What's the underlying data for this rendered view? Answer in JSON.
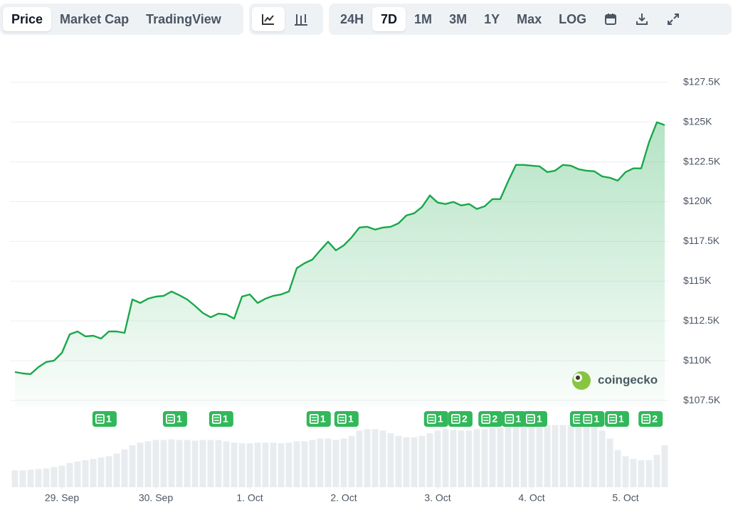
{
  "toolbar": {
    "views": [
      "Price",
      "Market Cap",
      "TradingView"
    ],
    "active_view": 0,
    "ranges": [
      "24H",
      "7D",
      "1M",
      "3M",
      "1Y",
      "Max",
      "LOG"
    ],
    "active_range": 1
  },
  "watermark": "coingecko",
  "chart_data": {
    "type": "line",
    "color": "#18a84a",
    "grid": true,
    "x": [
      -12,
      -10,
      -8,
      -6,
      -4,
      -2,
      0,
      2,
      4,
      6,
      8,
      10,
      12,
      14,
      16,
      18,
      20,
      22,
      24,
      26,
      28,
      30,
      32,
      34,
      36,
      38,
      40,
      42,
      44,
      46,
      48,
      50,
      52,
      54,
      56,
      58,
      60,
      62,
      64,
      66,
      68,
      70,
      72,
      74,
      76,
      78,
      80,
      82,
      84,
      86,
      88,
      90,
      92,
      94,
      96,
      98,
      100,
      102,
      104,
      106,
      108,
      110,
      112,
      114,
      116,
      118,
      120,
      122,
      124,
      126,
      128,
      130,
      132,
      134,
      136,
      138,
      140,
      142,
      144,
      146,
      148,
      150,
      152,
      154
    ],
    "series": [
      {
        "values": [
          109290,
          109200,
          109160,
          109600,
          109920,
          110010,
          110500,
          111660,
          111840,
          111530,
          111570,
          111390,
          111840,
          111840,
          111750,
          113850,
          113630,
          113900,
          114030,
          114080,
          114350,
          114120,
          113850,
          113450,
          113000,
          112730,
          112960,
          112910,
          112650,
          114030,
          114170,
          113630,
          113900,
          114080,
          114170,
          114350,
          115820,
          116130,
          116360,
          116940,
          117480,
          116940,
          117250,
          117750,
          118370,
          118420,
          118240,
          118370,
          118420,
          118640,
          119130,
          119270,
          119670,
          120390,
          119940,
          119850,
          119980,
          119760,
          119850,
          119540,
          119710,
          120160,
          120160,
          121280,
          122310,
          122310,
          122260,
          122220,
          121860,
          121950,
          122310,
          122260,
          122040,
          121950,
          121910,
          121590,
          121500,
          121320,
          121860,
          122090,
          122090,
          123740,
          124990,
          124810
        ]
      },
      {
        "axis": "y2",
        "color": "#e9ecef",
        "values": [
          25,
          25,
          26,
          27,
          28,
          30,
          32,
          36,
          38,
          40,
          42,
          44,
          46,
          50,
          56,
          62,
          66,
          68,
          70,
          70,
          71,
          70,
          70,
          69,
          70,
          70,
          70,
          68,
          66,
          65,
          65,
          66,
          66,
          66,
          65,
          66,
          68,
          68,
          70,
          72,
          72,
          70,
          72,
          76,
          84,
          86,
          86,
          84,
          80,
          76,
          74,
          74,
          76,
          80,
          84,
          86,
          85,
          84,
          84,
          86,
          86,
          88,
          88,
          90,
          92,
          92,
          90,
          90,
          92,
          92,
          92,
          92,
          92,
          92,
          90,
          84,
          72,
          55,
          46,
          42,
          40,
          40,
          48,
          62
        ]
      }
    ],
    "xlim": [
      -13.27,
      155.09
    ],
    "xticks": [
      {
        "value": 0,
        "label": "29. Sep"
      },
      {
        "value": 24,
        "label": "30. Sep"
      },
      {
        "value": 48,
        "label": "1. Oct"
      },
      {
        "value": 72,
        "label": "2. Oct"
      },
      {
        "value": 96,
        "label": "3. Oct"
      },
      {
        "value": 120,
        "label": "4. Oct"
      },
      {
        "value": 144,
        "label": "5. Oct"
      }
    ],
    "ylim": [
      107100,
      129500
    ],
    "yticks": [
      {
        "value": 107500,
        "label": "$107.5K"
      },
      {
        "value": 110000,
        "label": "$110K"
      },
      {
        "value": 112500,
        "label": "$112.5K"
      },
      {
        "value": 115000,
        "label": "$115K"
      },
      {
        "value": 117500,
        "label": "$117.5K"
      },
      {
        "value": 120000,
        "label": "$120K"
      },
      {
        "value": 122500,
        "label": "$122.5K"
      },
      {
        "value": 125000,
        "label": "$125K"
      },
      {
        "value": 127500,
        "label": "$127.5K"
      }
    ],
    "y2lim": [
      0,
      100
    ],
    "news": [
      {
        "x": 10.9,
        "count": 1
      },
      {
        "x": 28.9,
        "count": 1
      },
      {
        "x": 40.7,
        "count": 1
      },
      {
        "x": 65.6,
        "count": 1
      },
      {
        "x": 72.7,
        "count": 1
      },
      {
        "x": 95.6,
        "count": 1
      },
      {
        "x": 101.8,
        "count": 2
      },
      {
        "x": 109.5,
        "count": 2
      },
      {
        "x": 115.5,
        "count": 1
      },
      {
        "x": 120.9,
        "count": 1
      },
      {
        "x": 132.9,
        "count": 1
      },
      {
        "x": 135.5,
        "count": 1
      },
      {
        "x": 141.8,
        "count": 1
      },
      {
        "x": 150.4,
        "count": 2
      }
    ]
  }
}
